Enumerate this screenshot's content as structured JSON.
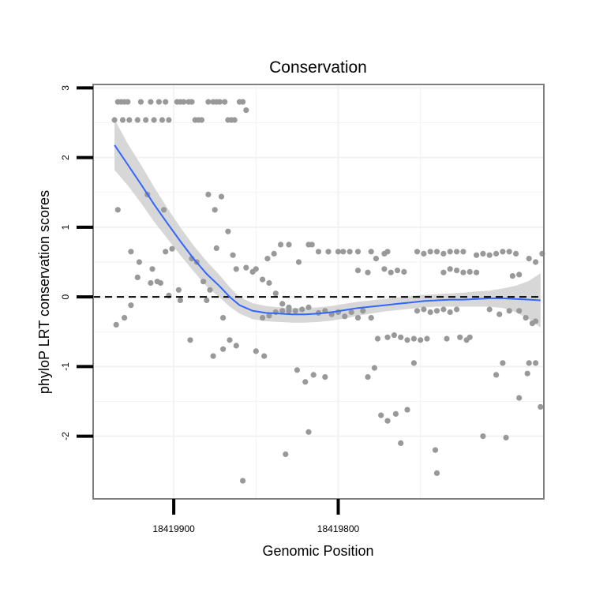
{
  "chart_data": {
    "type": "scatter",
    "title": "Conservation",
    "xlabel": "Genomic Position",
    "ylabel": "phyloP LRT conservation scores",
    "x_reversed": true,
    "xlim": [
      18419949,
      18419675
    ],
    "ylim": [
      -2.9,
      3.05
    ],
    "xticks": [
      18419900,
      18419800
    ],
    "xtick_labels": [
      "18419900",
      "18419800"
    ],
    "yticks": [
      -2,
      -1,
      0,
      1,
      2,
      3
    ],
    "ytick_labels": [
      "-2",
      "-1",
      "0",
      "1",
      "2",
      "3"
    ],
    "reference_line": {
      "y": 0,
      "style": "dashed"
    },
    "colors": {
      "points": "#999999",
      "smooth": "#3366ff",
      "ribbon": "#d3d3d3",
      "frame": "#7f7f7f",
      "grid": "#f2f2f2"
    },
    "series": [
      {
        "name": "phyloP scores",
        "kind": "points",
        "points": [
          [
            18419936,
            2.54
          ],
          [
            18419934,
            2.8
          ],
          [
            18419932,
            2.8
          ],
          [
            18419930,
            2.8
          ],
          [
            18419928,
            2.8
          ],
          [
            18419931,
            2.54
          ],
          [
            18419927,
            2.54
          ],
          [
            18419922,
            2.54
          ],
          [
            18419920,
            2.8
          ],
          [
            18419917,
            2.54
          ],
          [
            18419914,
            2.8
          ],
          [
            18419912,
            2.54
          ],
          [
            18419909,
            2.8
          ],
          [
            18419907,
            2.54
          ],
          [
            18419905,
            2.8
          ],
          [
            18419903,
            2.54
          ],
          [
            18419898,
            2.8
          ],
          [
            18419896,
            2.8
          ],
          [
            18419894,
            2.8
          ],
          [
            18419891,
            2.8
          ],
          [
            18419889,
            2.8
          ],
          [
            18419887,
            2.54
          ],
          [
            18419885,
            2.54
          ],
          [
            18419883,
            2.54
          ],
          [
            18419879,
            2.8
          ],
          [
            18419876,
            2.8
          ],
          [
            18419874,
            2.8
          ],
          [
            18419872,
            2.8
          ],
          [
            18419869,
            2.8
          ],
          [
            18419867,
            2.54
          ],
          [
            18419865,
            2.54
          ],
          [
            18419863,
            2.54
          ],
          [
            18419860,
            2.8
          ],
          [
            18419858,
            2.8
          ],
          [
            18419856,
            2.68
          ],
          [
            18419934,
            1.25
          ],
          [
            18419916,
            1.47
          ],
          [
            18419906,
            1.25
          ],
          [
            18419879,
            1.47
          ],
          [
            18419875,
            1.25
          ],
          [
            18419871,
            1.44
          ],
          [
            18419926,
            0.65
          ],
          [
            18419921,
            0.5
          ],
          [
            18419913,
            0.4
          ],
          [
            18419908,
            0.2
          ],
          [
            18419905,
            0.65
          ],
          [
            18419901,
            0.69
          ],
          [
            18419897,
            0.1
          ],
          [
            18419889,
            0.55
          ],
          [
            18419886,
            0.5
          ],
          [
            18419930,
            -0.3
          ],
          [
            18419935,
            -0.4
          ],
          [
            18419926,
            -0.12
          ],
          [
            18419922,
            0.28
          ],
          [
            18419914,
            0.2
          ],
          [
            18419910,
            0.22
          ],
          [
            18419903,
            0.02
          ],
          [
            18419896,
            -0.05
          ],
          [
            18419890,
            -0.62
          ],
          [
            18419882,
            0.22
          ],
          [
            18419880,
            -0.05
          ],
          [
            18419878,
            0.1
          ],
          [
            18419874,
            0.7
          ],
          [
            18419870,
            -0.3
          ],
          [
            18419867,
            0.94
          ],
          [
            18419864,
            0.6
          ],
          [
            18419862,
            0.4
          ],
          [
            18419856,
            0.42
          ],
          [
            18419852,
            0.36
          ],
          [
            18419850,
            0.4
          ],
          [
            18419846,
            0.25
          ],
          [
            18419842,
            0.2
          ],
          [
            18419838,
            0.05
          ],
          [
            18419834,
            -0.1
          ],
          [
            18419830,
            -0.2
          ],
          [
            18419876,
            -0.85
          ],
          [
            18419870,
            -0.75
          ],
          [
            18419866,
            -0.62
          ],
          [
            18419862,
            -0.7
          ],
          [
            18419858,
            -2.64
          ],
          [
            18419850,
            -0.78
          ],
          [
            18419845,
            -0.85
          ],
          [
            18419843,
            0.55
          ],
          [
            18419839,
            0.62
          ],
          [
            18419835,
            0.75
          ],
          [
            18419830,
            0.75
          ],
          [
            18419824,
            0.5
          ],
          [
            18419818,
            0.75
          ],
          [
            18419816,
            0.75
          ],
          [
            18419812,
            0.65
          ],
          [
            18419806,
            0.65
          ],
          [
            18419800,
            0.65
          ],
          [
            18419797,
            0.65
          ],
          [
            18419793,
            0.65
          ],
          [
            18419788,
            0.65
          ],
          [
            18419780,
            0.65
          ],
          [
            18419772,
            0.62
          ],
          [
            18419770,
            0.65
          ],
          [
            18419846,
            -0.3
          ],
          [
            18419842,
            -0.27
          ],
          [
            18419838,
            -0.22
          ],
          [
            18419834,
            -0.2
          ],
          [
            18419830,
            -0.15
          ],
          [
            18419826,
            -0.2
          ],
          [
            18419822,
            -0.18
          ],
          [
            18419818,
            -0.15
          ],
          [
            18419812,
            -0.23
          ],
          [
            18419808,
            -0.2
          ],
          [
            18419804,
            -0.25
          ],
          [
            18419800,
            -0.22
          ],
          [
            18419796,
            -0.28
          ],
          [
            18419792,
            -0.22
          ],
          [
            18419788,
            -0.3
          ],
          [
            18419785,
            -0.2
          ],
          [
            18419780,
            -0.3
          ],
          [
            18419825,
            -1.05
          ],
          [
            18419820,
            -1.22
          ],
          [
            18419815,
            -1.12
          ],
          [
            18419818,
            -1.94
          ],
          [
            18419808,
            -1.15
          ],
          [
            18419832,
            -2.26
          ],
          [
            18419788,
            0.38
          ],
          [
            18419782,
            0.35
          ],
          [
            18419777,
            0.55
          ],
          [
            18419772,
            0.4
          ],
          [
            18419768,
            0.35
          ],
          [
            18419764,
            0.38
          ],
          [
            18419760,
            0.36
          ],
          [
            18419776,
            -0.6
          ],
          [
            18419770,
            -0.58
          ],
          [
            18419766,
            -0.55
          ],
          [
            18419762,
            -0.58
          ],
          [
            18419758,
            -0.62
          ],
          [
            18419754,
            -0.6
          ],
          [
            18419750,
            -0.62
          ],
          [
            18419782,
            -1.15
          ],
          [
            18419778,
            -1.02
          ],
          [
            18419774,
            -1.7
          ],
          [
            18419770,
            -1.78
          ],
          [
            18419765,
            -1.68
          ],
          [
            18419762,
            -2.1
          ],
          [
            18419758,
            -1.62
          ],
          [
            18419754,
            -0.95
          ],
          [
            18419752,
            0.65
          ],
          [
            18419748,
            0.62
          ],
          [
            18419744,
            0.65
          ],
          [
            18419740,
            0.65
          ],
          [
            18419736,
            0.62
          ],
          [
            18419732,
            0.65
          ],
          [
            18419728,
            0.65
          ],
          [
            18419724,
            0.65
          ],
          [
            18419752,
            -0.2
          ],
          [
            18419748,
            -0.18
          ],
          [
            18419744,
            -0.22
          ],
          [
            18419740,
            -0.2
          ],
          [
            18419736,
            -0.18
          ],
          [
            18419732,
            -0.22
          ],
          [
            18419728,
            -0.18
          ],
          [
            18419746,
            -0.6
          ],
          [
            18419741,
            -2.2
          ],
          [
            18419740,
            -2.53
          ],
          [
            18419734,
            -0.6
          ],
          [
            18419726,
            -0.58
          ],
          [
            18419722,
            -0.62
          ],
          [
            18419720,
            -0.58
          ],
          [
            18419736,
            0.35
          ],
          [
            18419732,
            0.4
          ],
          [
            18419728,
            0.38
          ],
          [
            18419724,
            0.35
          ],
          [
            18419720,
            0.36
          ],
          [
            18419716,
            0.35
          ],
          [
            18419716,
            0.6
          ],
          [
            18419712,
            0.62
          ],
          [
            18419708,
            0.6
          ],
          [
            18419704,
            0.62
          ],
          [
            18419700,
            0.65
          ],
          [
            18419696,
            0.65
          ],
          [
            18419692,
            0.62
          ],
          [
            18419712,
            -2.0
          ],
          [
            18419708,
            -0.18
          ],
          [
            18419704,
            -1.12
          ],
          [
            18419700,
            -0.95
          ],
          [
            18419698,
            -2.02
          ],
          [
            18419690,
            -1.45
          ],
          [
            18419684,
            -0.95
          ],
          [
            18419702,
            -0.25
          ],
          [
            18419696,
            -0.2
          ],
          [
            18419690,
            -0.2
          ],
          [
            18419686,
            -0.3
          ],
          [
            18419682,
            -0.38
          ],
          [
            18419680,
            -0.35
          ],
          [
            18419694,
            0.3
          ],
          [
            18419690,
            0.32
          ],
          [
            18419684,
            0.55
          ],
          [
            18419680,
            0.5
          ],
          [
            18419676,
            0.62
          ],
          [
            18419680,
            -0.95
          ],
          [
            18419677,
            -1.58
          ],
          [
            18419685,
            -1.1
          ]
        ]
      },
      {
        "name": "loess fit",
        "kind": "smooth",
        "points": [
          [
            18419936,
            2.18
          ],
          [
            18419928,
            1.9
          ],
          [
            18419920,
            1.62
          ],
          [
            18419912,
            1.33
          ],
          [
            18419904,
            1.06
          ],
          [
            18419896,
            0.8
          ],
          [
            18419888,
            0.55
          ],
          [
            18419880,
            0.33
          ],
          [
            18419872,
            0.15
          ],
          [
            18419866,
            0.0
          ],
          [
            18419860,
            -0.12
          ],
          [
            18419852,
            -0.2
          ],
          [
            18419844,
            -0.23
          ],
          [
            18419836,
            -0.24
          ],
          [
            18419828,
            -0.25
          ],
          [
            18419820,
            -0.25
          ],
          [
            18419812,
            -0.24
          ],
          [
            18419804,
            -0.22
          ],
          [
            18419796,
            -0.19
          ],
          [
            18419788,
            -0.16
          ],
          [
            18419780,
            -0.14
          ],
          [
            18419772,
            -0.12
          ],
          [
            18419764,
            -0.1
          ],
          [
            18419756,
            -0.08
          ],
          [
            18419748,
            -0.06
          ],
          [
            18419740,
            -0.05
          ],
          [
            18419732,
            -0.04
          ],
          [
            18419724,
            -0.04
          ],
          [
            18419716,
            -0.03
          ],
          [
            18419708,
            -0.02
          ],
          [
            18419700,
            -0.02
          ],
          [
            18419692,
            -0.03
          ],
          [
            18419684,
            -0.04
          ],
          [
            18419677,
            -0.05
          ]
        ],
        "ribbon_upper": [
          2.55,
          2.2,
          1.9,
          1.58,
          1.28,
          1.0,
          0.74,
          0.51,
          0.31,
          0.14,
          0.0,
          -0.09,
          -0.13,
          -0.15,
          -0.16,
          -0.16,
          -0.15,
          -0.13,
          -0.1,
          -0.07,
          -0.05,
          -0.03,
          -0.01,
          0.01,
          0.03,
          0.04,
          0.05,
          0.06,
          0.08,
          0.09,
          0.12,
          0.16,
          0.23,
          0.34
        ],
        "ribbon_lower": [
          1.82,
          1.6,
          1.35,
          1.08,
          0.84,
          0.6,
          0.37,
          0.15,
          -0.01,
          -0.14,
          -0.24,
          -0.32,
          -0.35,
          -0.36,
          -0.37,
          -0.37,
          -0.36,
          -0.34,
          -0.31,
          -0.27,
          -0.24,
          -0.21,
          -0.19,
          -0.17,
          -0.15,
          -0.14,
          -0.14,
          -0.14,
          -0.14,
          -0.14,
          -0.16,
          -0.22,
          -0.32,
          -0.44
        ]
      }
    ]
  }
}
